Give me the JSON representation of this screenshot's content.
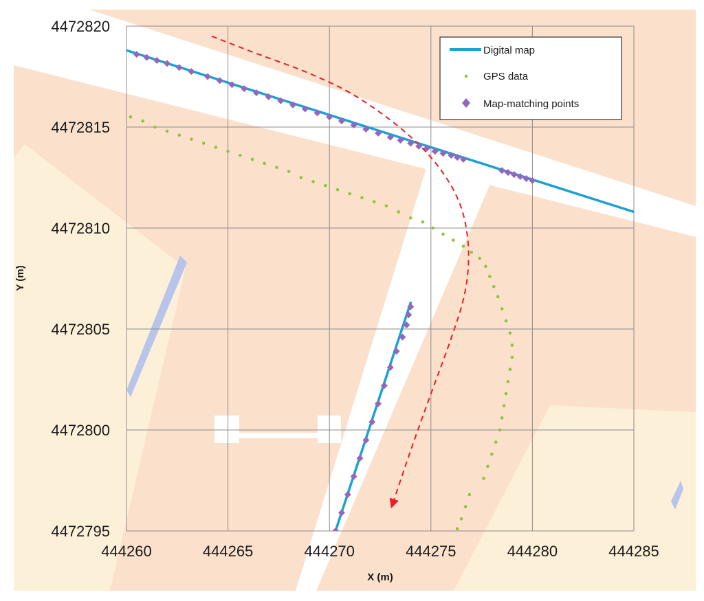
{
  "chart_data": {
    "type": "scatter",
    "xlabel": "X (m)",
    "ylabel": "Y (m)",
    "xlim": [
      444260,
      444285
    ],
    "ylim": [
      4472795,
      4472820
    ],
    "x_ticks": [
      "444260",
      "444265",
      "444270",
      "444275",
      "444280",
      "444285"
    ],
    "y_ticks": [
      "4472795",
      "4472800",
      "4472805",
      "4472810",
      "4472815",
      "4472820"
    ],
    "grid": true,
    "legend_position": "top-right",
    "colors": {
      "digital_map": "#1ba1d4",
      "gps": "#8cc63f",
      "map_matching": "#9467bd",
      "trajectory_arrow": "#ee1c25",
      "road_fill": "#fbe0cc",
      "road_fill_light": "#fdf0d8",
      "water": "#b8c4ea"
    },
    "series": [
      {
        "name": "Digital map",
        "marker": "line",
        "segments": [
          [
            [
              444260,
              4472818.8
            ],
            [
              444285,
              4472810.8
            ]
          ],
          [
            [
              444270.3,
              4472795
            ],
            [
              444274.0,
              4472806.3
            ]
          ]
        ]
      },
      {
        "name": "GPS data",
        "marker": "dot",
        "points": [
          [
            444260.2,
            4472815.5
          ],
          [
            444260.8,
            4472815.3
          ],
          [
            444261.4,
            4472815.0
          ],
          [
            444262.0,
            4472814.8
          ],
          [
            444262.6,
            4472814.6
          ],
          [
            444263.2,
            4472814.4
          ],
          [
            444263.8,
            4472814.2
          ],
          [
            444264.4,
            4472814.0
          ],
          [
            444265.0,
            4472813.8
          ],
          [
            444265.6,
            4472813.6
          ],
          [
            444266.2,
            4472813.4
          ],
          [
            444266.8,
            4472813.2
          ],
          [
            444267.4,
            4472813.0
          ],
          [
            444268.0,
            4472812.8
          ],
          [
            444268.6,
            4472812.5
          ],
          [
            444269.2,
            4472812.3
          ],
          [
            444269.8,
            4472812.1
          ],
          [
            444270.4,
            4472811.9
          ],
          [
            444271.0,
            4472811.7
          ],
          [
            444271.6,
            4472811.5
          ],
          [
            444272.2,
            4472811.3
          ],
          [
            444272.8,
            4472811.1
          ],
          [
            444273.4,
            4472810.8
          ],
          [
            444274.0,
            4472810.5
          ],
          [
            444274.6,
            4472810.3
          ],
          [
            444275.1,
            4472810.0
          ],
          [
            444275.6,
            4472809.7
          ],
          [
            444276.1,
            4472809.4
          ],
          [
            444276.6,
            4472809.1
          ],
          [
            444277.0,
            4472808.8
          ],
          [
            444277.4,
            4472808.5
          ],
          [
            444277.7,
            4472808.1
          ],
          [
            444277.9,
            4472807.6
          ],
          [
            444278.1,
            4472807.1
          ],
          [
            444278.3,
            4472806.6
          ],
          [
            444278.5,
            4472806.0
          ],
          [
            444278.7,
            4472805.4
          ],
          [
            444278.9,
            4472804.8
          ],
          [
            444279.0,
            4472804.2
          ],
          [
            444279.0,
            4472803.6
          ],
          [
            444278.9,
            4472803.0
          ],
          [
            444278.8,
            4472802.4
          ],
          [
            444278.7,
            4472801.8
          ],
          [
            444278.6,
            4472801.2
          ],
          [
            444278.5,
            4472800.6
          ],
          [
            444278.4,
            4472800.0
          ],
          [
            444278.2,
            4472799.4
          ],
          [
            444278.0,
            4472798.8
          ],
          [
            444277.8,
            4472798.2
          ],
          [
            444277.6,
            4472797.6
          ],
          [
            444276.9,
            4472796.8
          ],
          [
            444276.7,
            4472796.2
          ],
          [
            444276.5,
            4472795.6
          ],
          [
            444276.3,
            4472795.1
          ]
        ]
      },
      {
        "name": "Map-matching points",
        "marker": "diamond",
        "points": [
          [
            444260.5,
            4472818.6
          ],
          [
            444261.0,
            4472818.45
          ],
          [
            444261.5,
            4472818.3
          ],
          [
            444262.0,
            4472818.15
          ],
          [
            444262.6,
            4472817.95
          ],
          [
            444263.2,
            4472817.75
          ],
          [
            444264.0,
            4472817.5
          ],
          [
            444264.6,
            4472817.3
          ],
          [
            444265.2,
            4472817.1
          ],
          [
            444265.8,
            4472816.9
          ],
          [
            444266.4,
            4472816.7
          ],
          [
            444267.0,
            4472816.5
          ],
          [
            444267.6,
            4472816.3
          ],
          [
            444268.2,
            4472816.1
          ],
          [
            444268.8,
            4472815.9
          ],
          [
            444269.4,
            4472815.7
          ],
          [
            444270.0,
            4472815.5
          ],
          [
            444270.6,
            4472815.3
          ],
          [
            444271.2,
            4472815.1
          ],
          [
            444271.8,
            4472814.9
          ],
          [
            444272.4,
            4472814.7
          ],
          [
            444273.0,
            4472814.5
          ],
          [
            444273.5,
            4472814.35
          ],
          [
            444274.0,
            4472814.2
          ],
          [
            444274.4,
            4472814.05
          ],
          [
            444274.8,
            4472813.95
          ],
          [
            444275.2,
            4472813.8
          ],
          [
            444275.6,
            4472813.7
          ],
          [
            444276.0,
            4472813.6
          ],
          [
            444276.3,
            4472813.5
          ],
          [
            444276.6,
            4472813.4
          ],
          [
            444278.5,
            4472812.85
          ],
          [
            444278.8,
            4472812.75
          ],
          [
            444279.1,
            4472812.65
          ],
          [
            444279.4,
            4472812.55
          ],
          [
            444279.7,
            4472812.45
          ],
          [
            444280.0,
            4472812.35
          ],
          [
            444270.3,
            4472795.0
          ],
          [
            444270.6,
            4472795.9
          ],
          [
            444270.9,
            4472796.8
          ],
          [
            444271.2,
            4472797.7
          ],
          [
            444271.5,
            4472798.6
          ],
          [
            444271.8,
            4472799.5
          ],
          [
            444272.1,
            4472800.4
          ],
          [
            444272.4,
            4472801.3
          ],
          [
            444272.7,
            4472802.2
          ],
          [
            444273.0,
            4472803.1
          ],
          [
            444273.3,
            4472803.9
          ],
          [
            444273.6,
            4472804.6
          ],
          [
            444273.8,
            4472805.2
          ],
          [
            444273.9,
            4472805.7
          ],
          [
            444274.0,
            4472806.1
          ]
        ]
      }
    ],
    "trajectory_arrow": [
      [
        444264.2,
        4472819.5
      ],
      [
        444266.5,
        4472818.6
      ],
      [
        444269.0,
        4472817.7
      ],
      [
        444271.5,
        4472816.5
      ],
      [
        444274.5,
        4472814.2
      ],
      [
        444276.3,
        4472811.8
      ],
      [
        444276.9,
        4472809.5
      ],
      [
        444276.8,
        4472807.0
      ],
      [
        444276.0,
        4472804.5
      ],
      [
        444275.0,
        4472801.8
      ],
      [
        444274.0,
        4472799.0
      ],
      [
        444273.1,
        4472796.3
      ]
    ]
  }
}
